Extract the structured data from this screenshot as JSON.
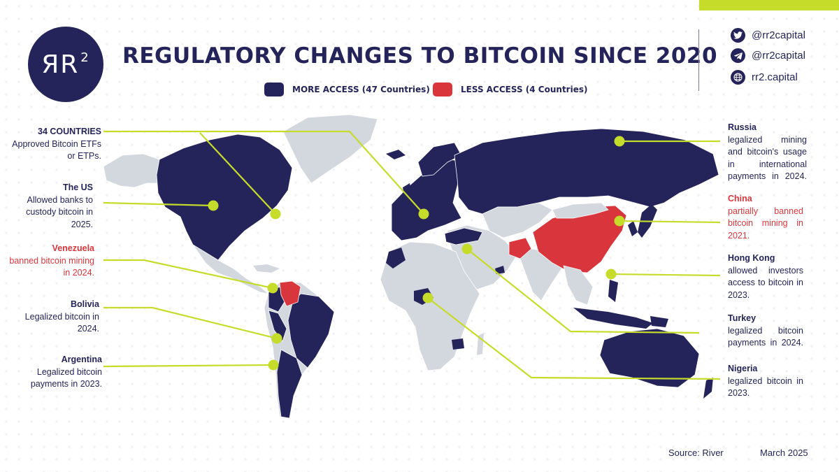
{
  "title": "REGULATORY CHANGES TO BITCOIN SINCE 2020",
  "logo": {
    "main": "ЯR",
    "sup": "2"
  },
  "legend": {
    "more": {
      "label": "MORE ACCESS (47 Countries)",
      "color": "#25245a"
    },
    "less": {
      "label": "LESS ACCESS (4 Countries)",
      "color": "#d8363c"
    }
  },
  "social": {
    "twitter": "@rr2capital",
    "telegram": "@rr2capital",
    "website": "rr2.capital"
  },
  "notes": {
    "etfs": {
      "heading": "34 COUNTRIES",
      "body": "Approved Bitcoin ETFs or ETPs."
    },
    "us": {
      "heading": "The US",
      "body": "Allowed banks to custody bitcoin in 2025."
    },
    "venezuela": {
      "heading": "Venezuela",
      "body": "banned bitcoin mining in 2024."
    },
    "bolivia": {
      "heading": "Bolivia",
      "body": "Legalized bitcoin in 2024."
    },
    "argentina": {
      "heading": "Argentina",
      "body": "Legalized bitcoin payments in 2023."
    },
    "russia": {
      "heading": "Russia",
      "body": "legalized mining and bitcoin's usage in international payments in 2024."
    },
    "china": {
      "heading": "China",
      "body": "partially banned bitcoin mining in 2021."
    },
    "hongkong": {
      "heading": "Hong Kong",
      "body": "allowed investors access to bitcoin in 2023."
    },
    "turkey": {
      "heading": "Turkey",
      "body": "legalized bitcoin payments in 2024."
    },
    "nigeria": {
      "heading": "Nigeria",
      "body": "legalized bitcoin in 2023."
    }
  },
  "footer": {
    "source": "Source: River",
    "date": "March 2025"
  },
  "colors": {
    "accent": "#c6dc2a",
    "navy": "#25245a",
    "red": "#d8363c",
    "land": "#d3d7de"
  }
}
